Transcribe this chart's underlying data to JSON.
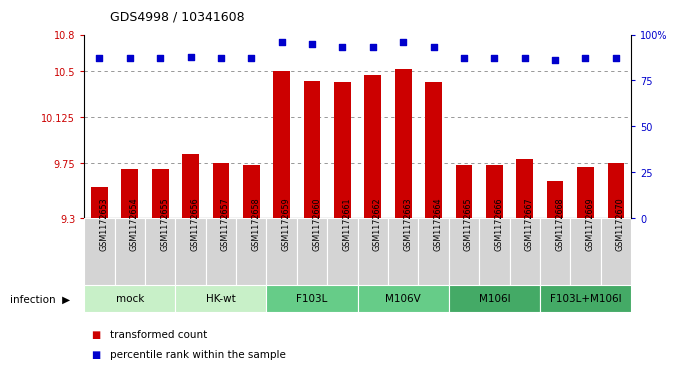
{
  "title": "GDS4998 / 10341608",
  "samples": [
    "GSM1172653",
    "GSM1172654",
    "GSM1172655",
    "GSM1172656",
    "GSM1172657",
    "GSM1172658",
    "GSM1172659",
    "GSM1172660",
    "GSM1172661",
    "GSM1172662",
    "GSM1172663",
    "GSM1172664",
    "GSM1172665",
    "GSM1172666",
    "GSM1172667",
    "GSM1172668",
    "GSM1172669",
    "GSM1172670"
  ],
  "transformed_count": [
    9.55,
    9.7,
    9.7,
    9.82,
    9.75,
    9.73,
    10.5,
    10.42,
    10.41,
    10.47,
    10.52,
    10.41,
    9.73,
    9.73,
    9.78,
    9.6,
    9.72,
    9.75
  ],
  "percentile_rank": [
    87,
    87,
    87,
    88,
    87,
    87,
    96,
    95,
    93,
    93,
    96,
    93,
    87,
    87,
    87,
    86,
    87,
    87
  ],
  "groups": [
    {
      "name": "mock",
      "start": 0,
      "end": 2,
      "color": "#c8f0c8"
    },
    {
      "name": "HK-wt",
      "start": 3,
      "end": 5,
      "color": "#c8f0c8"
    },
    {
      "name": "F103L",
      "start": 6,
      "end": 8,
      "color": "#66cc88"
    },
    {
      "name": "M106V",
      "start": 9,
      "end": 11,
      "color": "#66cc88"
    },
    {
      "name": "M106I",
      "start": 12,
      "end": 14,
      "color": "#44aa66"
    },
    {
      "name": "F103L+M106I",
      "start": 15,
      "end": 17,
      "color": "#44aa66"
    }
  ],
  "ylim_left": [
    9.3,
    10.8
  ],
  "ylim_right": [
    0,
    100
  ],
  "yticks_left": [
    9.3,
    9.75,
    10.125,
    10.5,
    10.8
  ],
  "ytick_labels_left": [
    "9.3",
    "9.75",
    "10.125",
    "10.5",
    "10.8"
  ],
  "yticks_right": [
    0,
    25,
    50,
    75,
    100
  ],
  "ytick_labels_right": [
    "0",
    "25",
    "50",
    "75",
    "100%"
  ],
  "bar_color": "#cc0000",
  "dot_color": "#0000cc",
  "grid_color": "#888888",
  "cell_color": "#d4d4d4",
  "cell_border": "#ffffff"
}
